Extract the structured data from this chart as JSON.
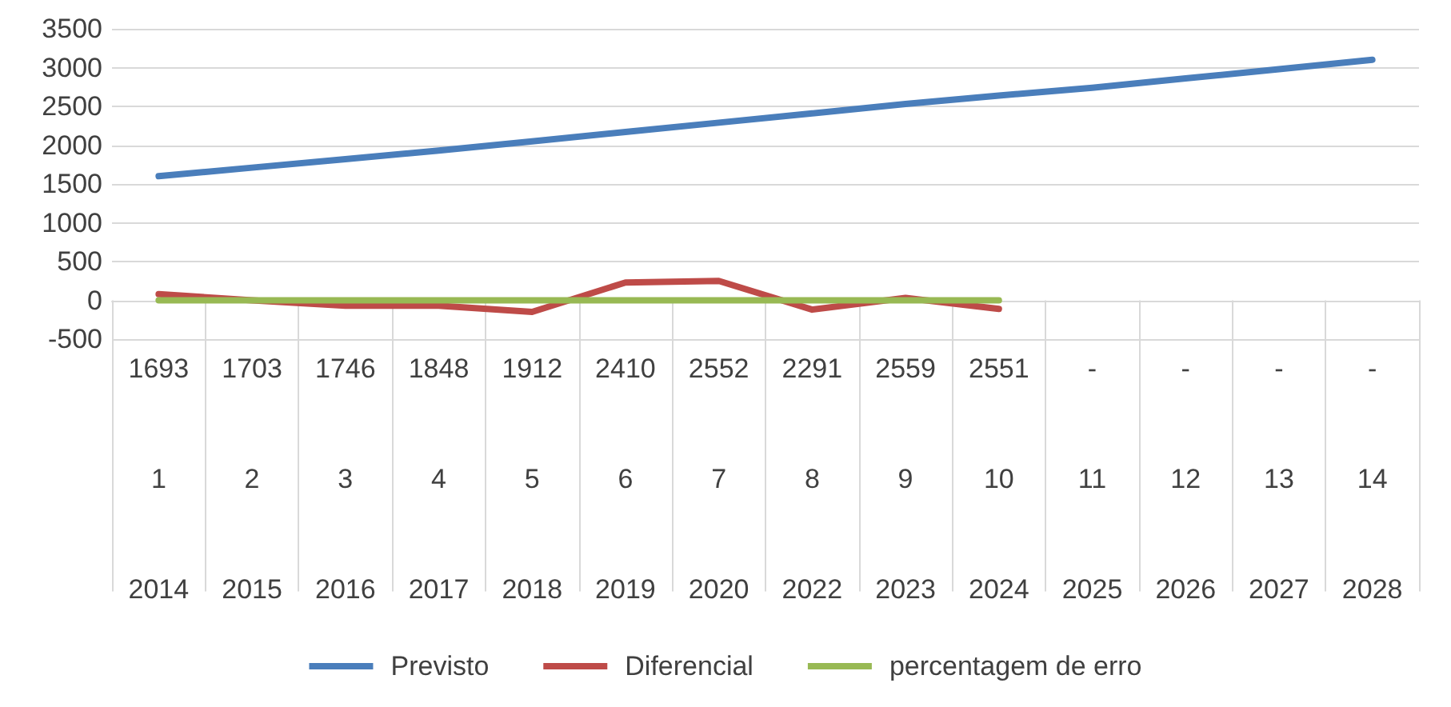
{
  "chart_data": {
    "type": "line",
    "categories": [
      "1693\n1\n2014",
      "1703\n2\n2015",
      "1746\n3\n2016",
      "1848\n4\n2017",
      "1912\n5\n2018",
      "2410\n6\n2019",
      "2552\n7\n2020",
      "2291\n8\n2022",
      "2559\n9\n2023",
      "2551\n10\n2024",
      "-\n11\n2025",
      "-\n12\n2026",
      "-\n13\n2027",
      "-\n14\n2028"
    ],
    "series": [
      {
        "name": "Previsto",
        "color": "#4a7ebb",
        "values": [
          1600,
          1710,
          1820,
          1930,
          2050,
          2170,
          2290,
          2410,
          2530,
          2640,
          2740,
          2860,
          2980,
          3100
        ]
      },
      {
        "name": "Diferencial",
        "color": "#be4b48",
        "values": [
          80,
          0,
          -70,
          -70,
          -150,
          230,
          250,
          -120,
          30,
          -110,
          null,
          null,
          null,
          null
        ]
      },
      {
        "name": "percentagem de erro",
        "color": "#98b954",
        "values": [
          0,
          0,
          0,
          0,
          0,
          0,
          0,
          0,
          0,
          0,
          null,
          null,
          null,
          null
        ]
      }
    ],
    "ylim": [
      -500,
      3500
    ],
    "yticks": [
      -500,
      0,
      500,
      1000,
      1500,
      2000,
      2500,
      3000,
      3500
    ],
    "grid": "y",
    "legend": "bottom",
    "marker": "none",
    "line_style": "solid"
  }
}
